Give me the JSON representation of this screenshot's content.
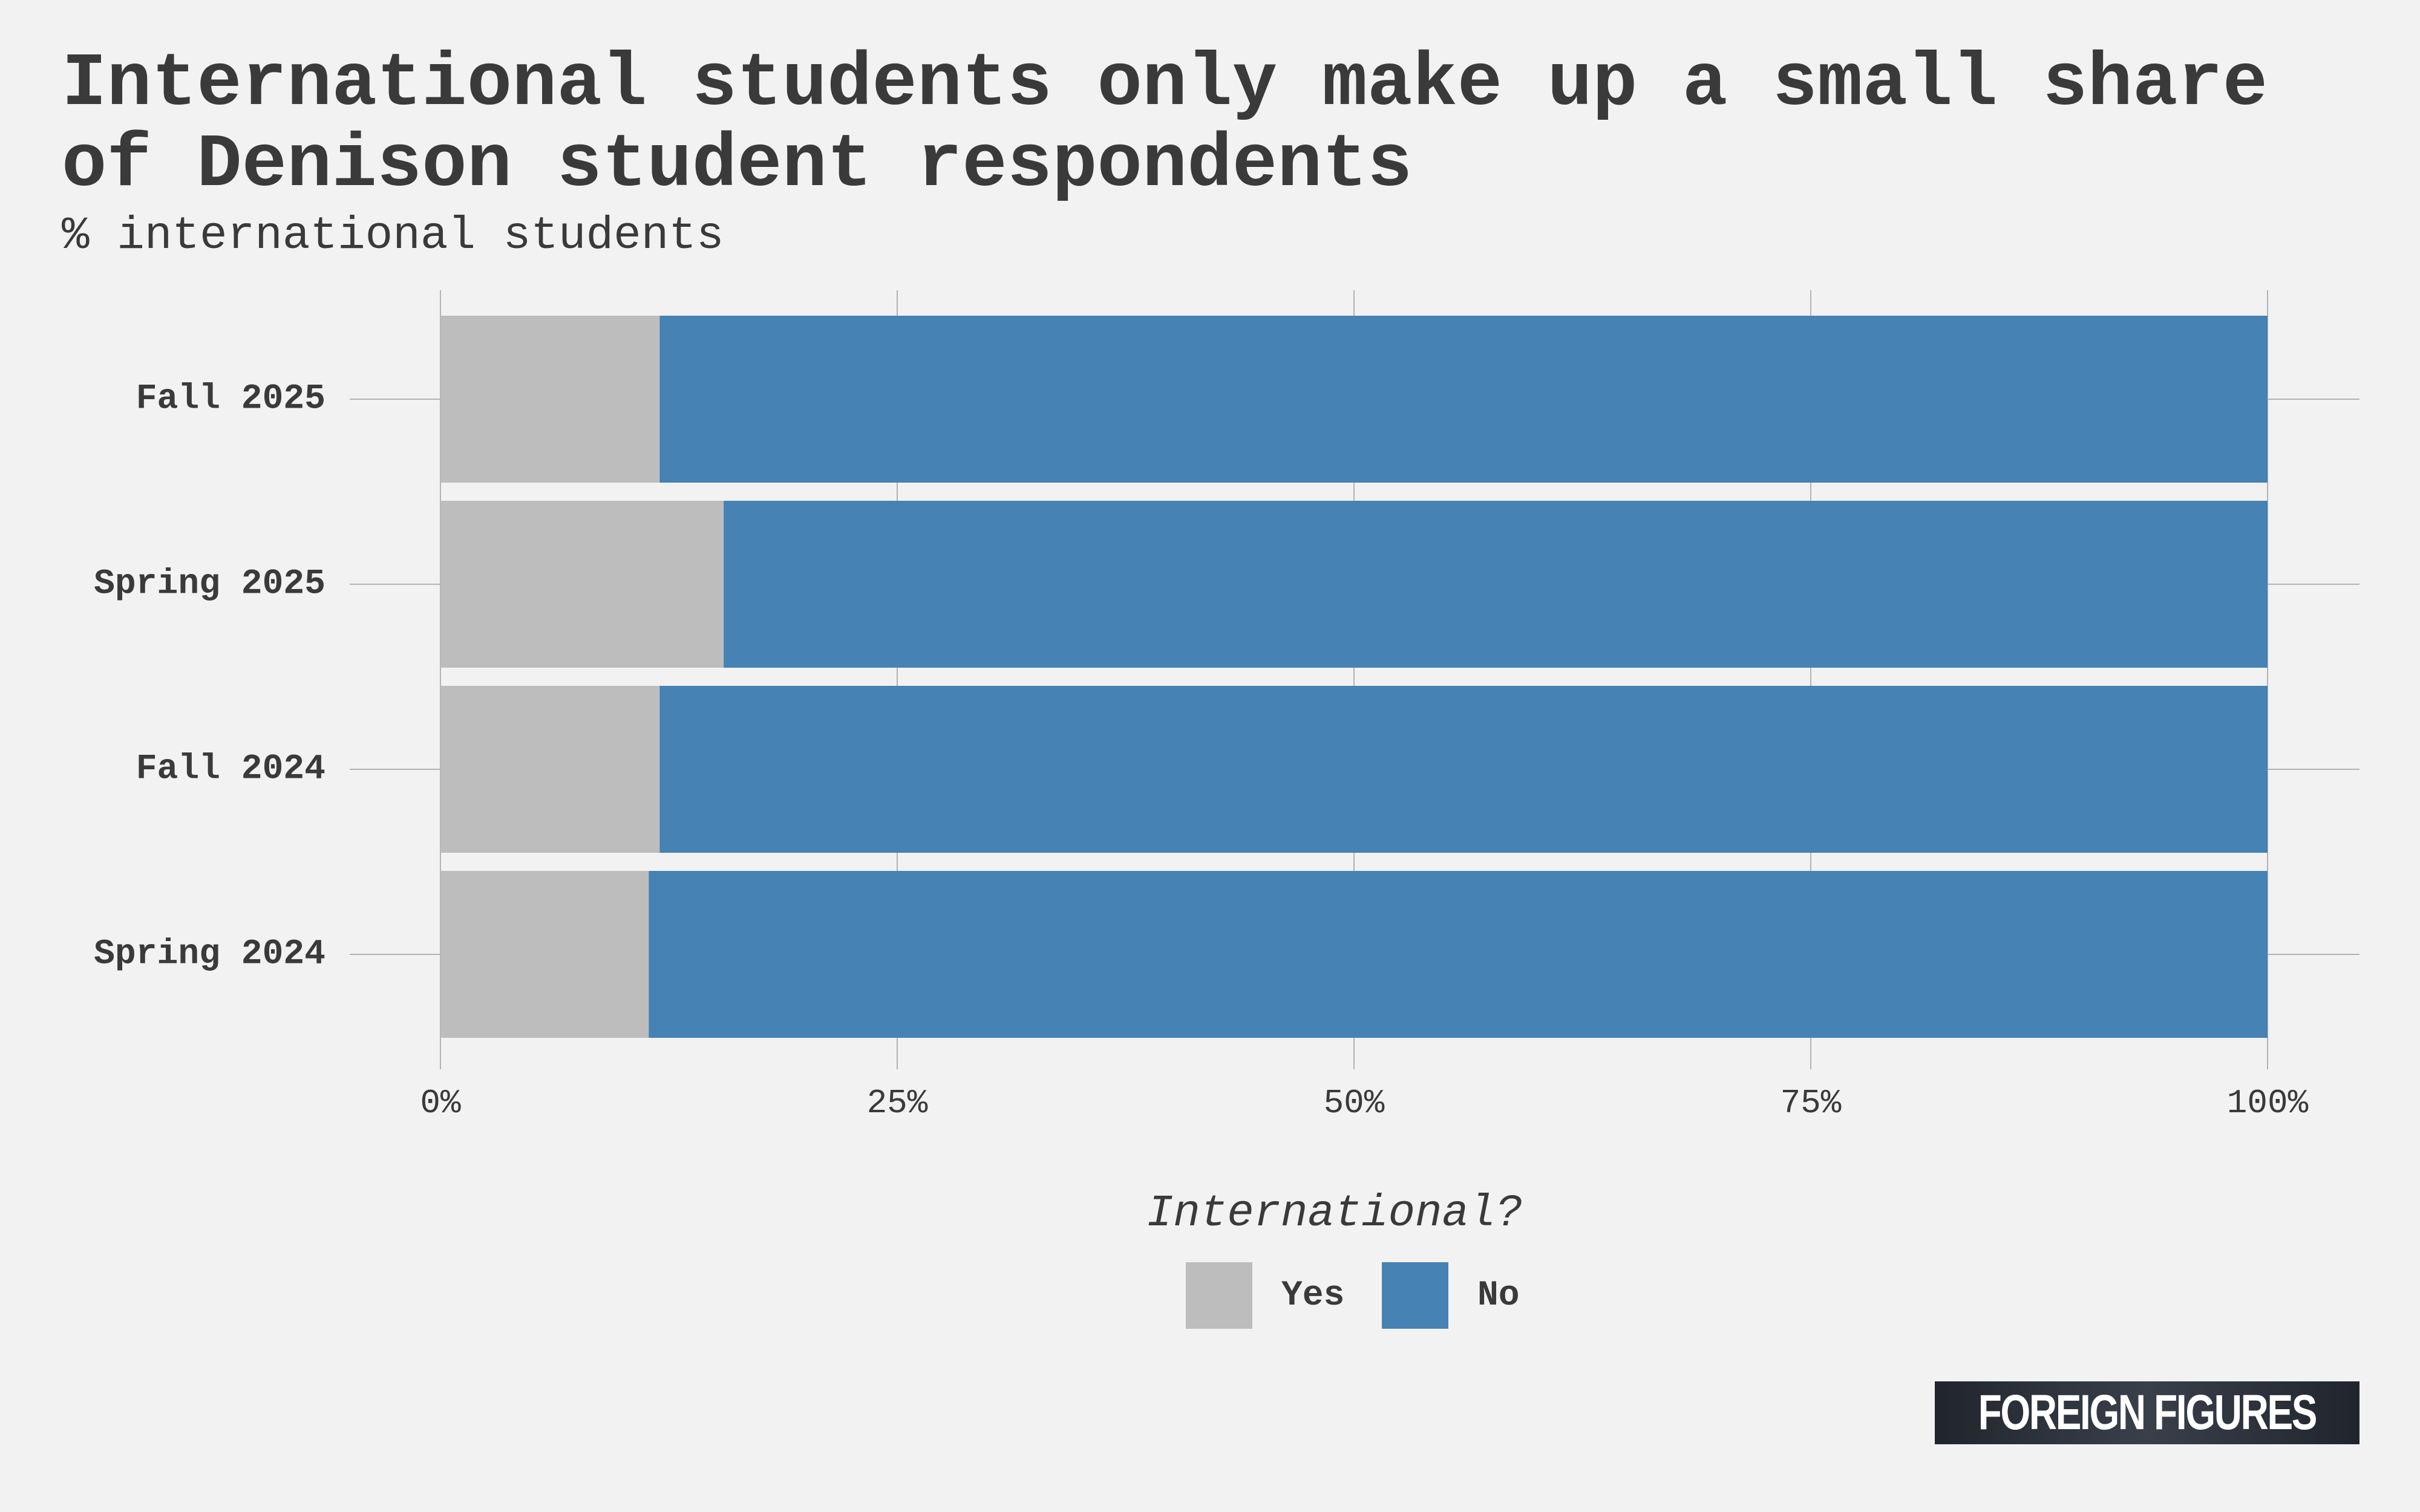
{
  "title_line1": "International students only make up a small share",
  "title_line2": "of Denison student respondents",
  "subtitle": "% international students",
  "legend": {
    "title": "International?",
    "items": [
      {
        "label": "Yes",
        "color": "#bdbdbd"
      },
      {
        "label": "No",
        "color": "#4682b4"
      }
    ]
  },
  "logo_text": "FOREIGN FIGURES",
  "chart_data": {
    "type": "bar",
    "orientation": "horizontal",
    "stacked": true,
    "categories": [
      "Fall 2025",
      "Spring 2025",
      "Fall 2024",
      "Spring 2024"
    ],
    "series": [
      {
        "name": "Yes",
        "color": "#bdbdbd",
        "values": [
          12,
          15.5,
          12,
          11.4
        ]
      },
      {
        "name": "No",
        "color": "#4682b4",
        "values": [
          88,
          84.5,
          88,
          88.6
        ]
      }
    ],
    "xlim": [
      0,
      100
    ],
    "x_ticks": [
      0,
      25,
      50,
      75,
      100
    ],
    "x_tick_labels": [
      "0%",
      "25%",
      "50%",
      "75%",
      "100%"
    ],
    "title": "International students only make up a small share of Denison student respondents",
    "subtitle": "% international students",
    "xlabel": "",
    "ylabel": "",
    "grid": true,
    "legend_position": "bottom"
  }
}
